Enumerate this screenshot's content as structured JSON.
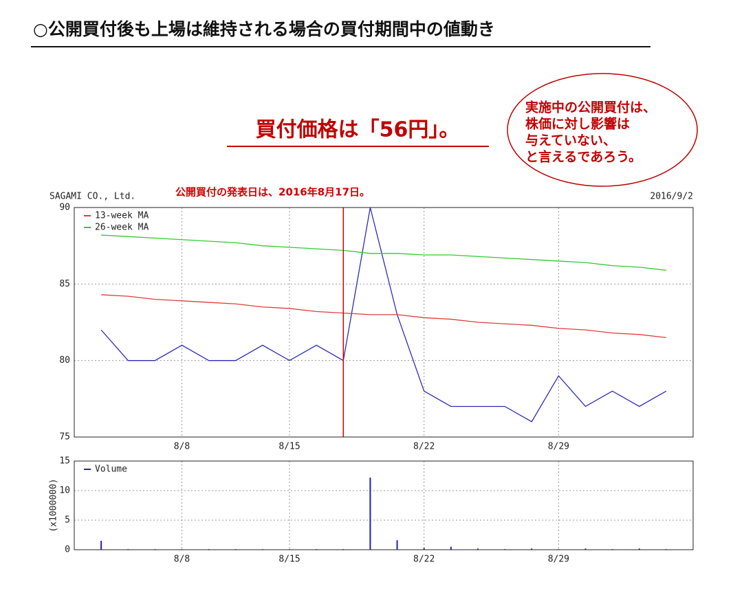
{
  "header": {
    "title": "○公開買付後も上場は維持される場合の買付期間中の値動き"
  },
  "subtitle": "買付価格は「56円」。",
  "callout": [
    "実施中の公開買付は、",
    "株価に対し影響は",
    "与えていない、",
    "と言えるであろう。"
  ],
  "chart_data": [
    {
      "type": "line",
      "company": "SAGAMI CO., Ltd.",
      "date": "2016/9/2",
      "annotation": "公開買付の発表日は、2016年8月17日。",
      "event_index": 9,
      "event_color": "#d00000",
      "categories": [
        null,
        null,
        null,
        "8/8",
        null,
        null,
        null,
        "8/15",
        null,
        null,
        null,
        null,
        "8/22",
        null,
        null,
        null,
        null,
        "8/29",
        null,
        null,
        null,
        null
      ],
      "ylim": [
        75,
        90
      ],
      "yticks": [
        75,
        80,
        85,
        90
      ],
      "grid": true,
      "legend": "top-left",
      "series": [
        {
          "color": "#2b2bb8",
          "values": [
            82,
            80,
            80,
            81,
            80,
            80,
            81,
            80,
            81,
            80,
            90,
            83,
            78,
            77,
            77,
            77,
            76,
            79,
            77,
            78,
            77,
            78
          ]
        },
        {
          "name": "13-week MA",
          "color": "#e03c3c",
          "values": [
            84.3,
            84.2,
            84.0,
            83.9,
            83.8,
            83.7,
            83.5,
            83.4,
            83.2,
            83.1,
            83.0,
            83.0,
            82.8,
            82.7,
            82.5,
            82.4,
            82.3,
            82.1,
            82.0,
            81.8,
            81.7,
            81.5
          ]
        },
        {
          "name": "26-week MA",
          "color": "#2ecc2e",
          "values": [
            88.2,
            88.1,
            88.0,
            87.9,
            87.8,
            87.7,
            87.5,
            87.4,
            87.3,
            87.2,
            87.0,
            87.0,
            86.9,
            86.9,
            86.8,
            86.7,
            86.6,
            86.5,
            86.4,
            86.2,
            86.1,
            85.9
          ]
        }
      ]
    },
    {
      "type": "bar",
      "ylabel": "(x1000000)",
      "categories": [
        null,
        null,
        null,
        "8/8",
        null,
        null,
        null,
        "8/15",
        null,
        null,
        null,
        null,
        "8/22",
        null,
        null,
        null,
        null,
        "8/29",
        null,
        null,
        null,
        null
      ],
      "ylim": [
        0,
        15
      ],
      "yticks": [
        0,
        5,
        10,
        15
      ],
      "grid": true,
      "legend": "top-left",
      "series": [
        {
          "name": "Volume",
          "color": "#2020b0",
          "values": [
            1.5,
            0.1,
            0.1,
            0.1,
            0.1,
            0.1,
            0.1,
            0.1,
            0.1,
            0.1,
            12.2,
            1.6,
            0.3,
            0.5,
            0.2,
            0.1,
            0.2,
            0.1,
            0.2,
            0.1,
            0.2,
            0.1
          ]
        }
      ]
    }
  ]
}
